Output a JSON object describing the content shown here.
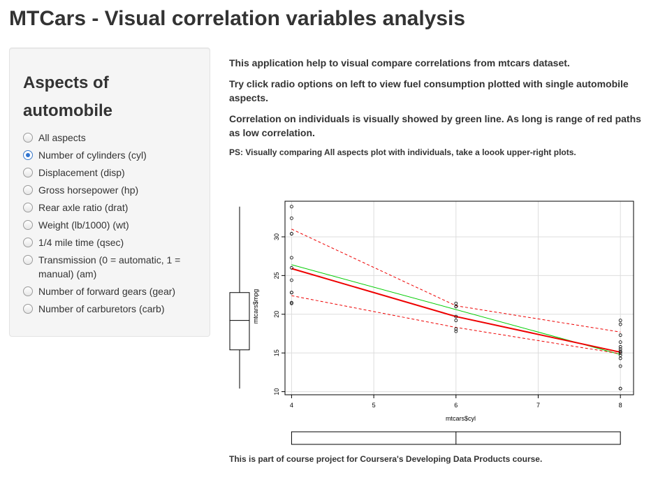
{
  "page": {
    "title": "MTCars - Visual correlation variables analysis"
  },
  "sidebar": {
    "heading": "Aspects of automobile",
    "options": [
      {
        "label": "All aspects",
        "selected": false
      },
      {
        "label": "Number of cylinders (cyl)",
        "selected": true
      },
      {
        "label": "Displacement (disp)",
        "selected": false
      },
      {
        "label": "Gross horsepower (hp)",
        "selected": false
      },
      {
        "label": "Rear axle ratio (drat)",
        "selected": false
      },
      {
        "label": "Weight (lb/1000) (wt)",
        "selected": false
      },
      {
        "label": "1/4 mile time (qsec)",
        "selected": false
      },
      {
        "label": "Transmission (0 = automatic, 1 = manual) (am)",
        "selected": false
      },
      {
        "label": "Number of forward gears (gear)",
        "selected": false
      },
      {
        "label": "Number of carburetors (carb)",
        "selected": false
      }
    ]
  },
  "main": {
    "paragraphs": [
      "This application help to visual compare correlations from mtcars dataset.",
      "Try click radio options on left to view fuel consumption plotted with single automobile aspects.",
      "Correlation on individuals is visually showed by green line. As long is range of red paths as low correlation."
    ],
    "note": "PS: Visually comparing All aspects plot with individuals, take a loook upper-right plots.",
    "footer": "This is part of course project for Coursera's Developing Data Products course."
  },
  "chart_data": {
    "type": "scatter",
    "xlabel": "mtcars$cyl",
    "ylabel": "mtcars$mpg",
    "xlim": [
      3.92,
      8.16
    ],
    "ylim": [
      9.6,
      34.6
    ],
    "xticks": [
      4,
      5,
      6,
      7,
      8
    ],
    "yticks": [
      10,
      15,
      20,
      25,
      30
    ],
    "grid": true,
    "points": [
      {
        "x": 4,
        "y": 33.9
      },
      {
        "x": 4,
        "y": 32.4
      },
      {
        "x": 4,
        "y": 30.4
      },
      {
        "x": 4,
        "y": 30.4
      },
      {
        "x": 4,
        "y": 27.3
      },
      {
        "x": 4,
        "y": 26.0
      },
      {
        "x": 4,
        "y": 24.4
      },
      {
        "x": 4,
        "y": 22.8
      },
      {
        "x": 4,
        "y": 22.8
      },
      {
        "x": 4,
        "y": 21.5
      },
      {
        "x": 4,
        "y": 21.4
      },
      {
        "x": 6,
        "y": 21.4
      },
      {
        "x": 6,
        "y": 21.0
      },
      {
        "x": 6,
        "y": 21.0
      },
      {
        "x": 6,
        "y": 19.7
      },
      {
        "x": 6,
        "y": 19.2
      },
      {
        "x": 6,
        "y": 18.1
      },
      {
        "x": 6,
        "y": 17.8
      },
      {
        "x": 8,
        "y": 19.2
      },
      {
        "x": 8,
        "y": 18.7
      },
      {
        "x": 8,
        "y": 17.3
      },
      {
        "x": 8,
        "y": 16.4
      },
      {
        "x": 8,
        "y": 15.8
      },
      {
        "x": 8,
        "y": 15.5
      },
      {
        "x": 8,
        "y": 15.2
      },
      {
        "x": 8,
        "y": 15.2
      },
      {
        "x": 8,
        "y": 15.0
      },
      {
        "x": 8,
        "y": 14.7
      },
      {
        "x": 8,
        "y": 14.3
      },
      {
        "x": 8,
        "y": 13.3
      },
      {
        "x": 8,
        "y": 10.4
      },
      {
        "x": 8,
        "y": 10.4
      }
    ],
    "lines": [
      {
        "role": "regression",
        "color": "#00cc00",
        "x": [
          4,
          8
        ],
        "y": [
          26.4,
          14.8
        ]
      },
      {
        "role": "smooth",
        "color": "#ee0000",
        "x": [
          4,
          6,
          8
        ],
        "y": [
          25.9,
          19.7,
          15.1
        ]
      },
      {
        "role": "upper-band",
        "color": "#ee0000",
        "dashed": true,
        "x": [
          4,
          6,
          8
        ],
        "y": [
          31.0,
          21.1,
          17.7
        ]
      },
      {
        "role": "lower-band",
        "color": "#ee0000",
        "dashed": true,
        "x": [
          4,
          6,
          8
        ],
        "y": [
          22.4,
          18.3,
          14.9
        ]
      }
    ],
    "y_boxplot": {
      "min": 10.4,
      "q1": 15.4,
      "median": 19.2,
      "q3": 22.8,
      "max": 33.9
    },
    "x_boxplot": {
      "min": 4,
      "q1": 4,
      "median": 6,
      "q3": 8,
      "max": 8
    }
  }
}
